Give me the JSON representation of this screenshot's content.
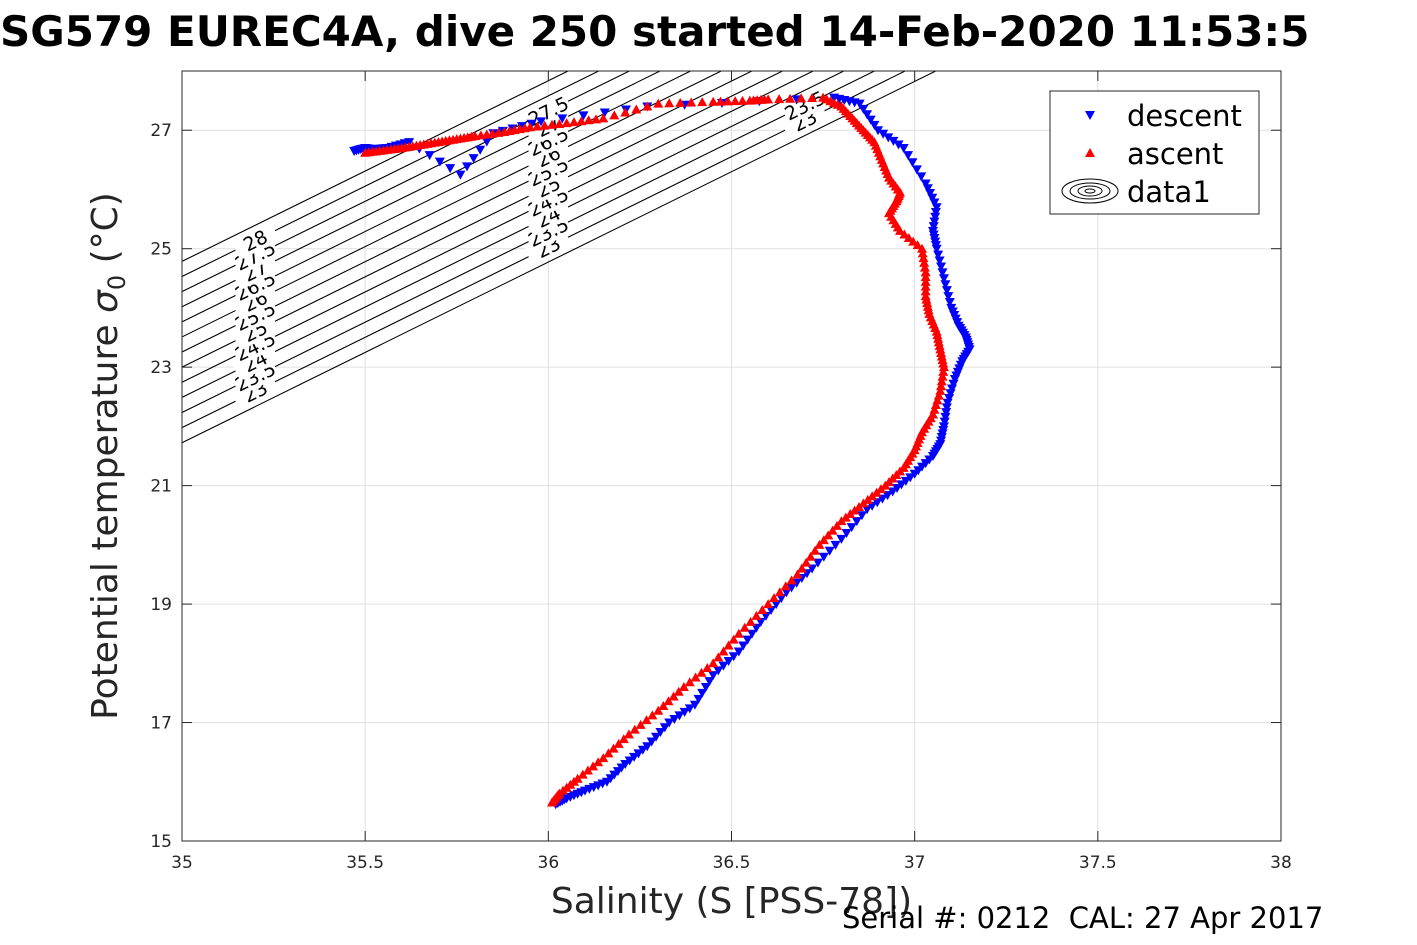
{
  "page": {
    "title": "SG579 EUREC4A, dive 250 started 14-Feb-2020 11:53:5",
    "footer": "Serial #: 0212  CAL: 27 Apr 2017"
  },
  "chart_data": {
    "type": "scatter",
    "title": "SG579 EUREC4A, dive 250 started 14-Feb-2020 11:53:5",
    "xlabel": "Salinity (S [PSS-78])",
    "ylabel": "Potential temperature σ 0 (°C)",
    "xlim": [
      35,
      38
    ],
    "ylim": [
      15,
      28
    ],
    "xticks": [
      35,
      35.5,
      36,
      36.5,
      37,
      37.5,
      38
    ],
    "xtick_labels": [
      "35",
      "35.5",
      "36",
      "36.5",
      "37",
      "37.5",
      "38"
    ],
    "yticks": [
      15,
      17,
      19,
      21,
      23,
      25,
      27
    ],
    "ytick_labels": [
      "15",
      "17",
      "19",
      "21",
      "23",
      "25",
      "27"
    ],
    "grid": true,
    "legend": {
      "position": "top-right",
      "entries": [
        "descent",
        "ascent",
        "data1"
      ]
    },
    "colors": {
      "descent": "#0000ff",
      "ascent": "#ff0000",
      "contour": "#000000",
      "grid": "#e0e0e0"
    },
    "series": [
      {
        "name": "descent",
        "marker": "triangle-down",
        "x": [
          35.47,
          35.5,
          35.52,
          35.56,
          35.62,
          35.76,
          35.85,
          35.98,
          36.27,
          36.78,
          36.85,
          36.9,
          36.97,
          37.03,
          37.06,
          37.05,
          37.06,
          37.08,
          37.1,
          37.12,
          37.14,
          37.15,
          37.13,
          37.11,
          37.09,
          37.08,
          37.07,
          37.05,
          37.0,
          36.94,
          36.87,
          36.8,
          36.72,
          36.65,
          36.58,
          36.52,
          36.45,
          36.4,
          36.33,
          36.27,
          36.21,
          36.16,
          36.1,
          36.05,
          36.02
        ],
        "y": [
          26.65,
          26.7,
          26.68,
          26.7,
          26.8,
          26.25,
          26.95,
          27.15,
          27.4,
          27.55,
          27.45,
          27.0,
          26.7,
          26.1,
          25.7,
          25.3,
          25.0,
          24.5,
          24.0,
          23.7,
          23.5,
          23.3,
          23.1,
          22.8,
          22.4,
          22.0,
          21.7,
          21.5,
          21.2,
          20.9,
          20.6,
          20.1,
          19.6,
          19.2,
          18.7,
          18.2,
          17.8,
          17.3,
          17.0,
          16.6,
          16.3,
          16.0,
          15.85,
          15.72,
          15.62
        ]
      },
      {
        "name": "ascent",
        "marker": "triangle-up",
        "x": [
          35.5,
          35.55,
          35.6,
          35.65,
          35.7,
          35.75,
          35.8,
          35.88,
          35.95,
          36.05,
          36.15,
          36.3,
          36.45,
          36.55,
          36.6,
          36.75,
          36.8,
          36.83,
          36.86,
          36.89,
          36.91,
          36.93,
          36.96,
          36.95,
          36.93,
          36.96,
          37.02,
          37.03,
          37.03,
          37.04,
          37.06,
          37.07,
          37.08,
          37.07,
          37.05,
          37.02,
          37.0,
          36.97,
          36.92,
          36.86,
          36.8,
          36.74,
          36.68,
          36.6,
          36.52,
          36.45,
          36.37,
          36.3,
          36.22,
          36.15,
          36.08,
          36.03,
          36.01
        ],
        "y": [
          26.62,
          26.66,
          26.7,
          26.75,
          26.8,
          26.85,
          26.9,
          26.97,
          27.05,
          27.12,
          27.2,
          27.45,
          27.48,
          27.5,
          27.52,
          27.55,
          27.4,
          27.2,
          27.0,
          26.8,
          26.5,
          26.2,
          25.95,
          25.8,
          25.6,
          25.3,
          25.0,
          24.6,
          24.2,
          23.9,
          23.6,
          23.3,
          23.0,
          22.6,
          22.2,
          21.9,
          21.6,
          21.3,
          21.0,
          20.7,
          20.4,
          20.0,
          19.5,
          19.0,
          18.5,
          18.0,
          17.6,
          17.2,
          16.8,
          16.4,
          16.05,
          15.8,
          15.65
        ]
      }
    ],
    "contour_labels": [
      "23",
      "23.5",
      "24",
      "24.5",
      "25",
      "25.5",
      "26",
      "26.5",
      "27",
      "27.5",
      "28"
    ]
  }
}
